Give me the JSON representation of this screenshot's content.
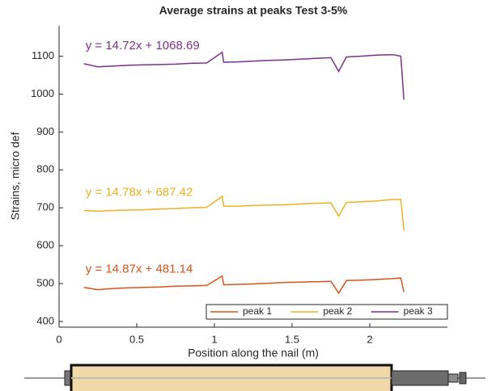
{
  "chart_data": {
    "type": "line",
    "title": "Average strains at peaks Test 3-5%",
    "xlabel": "Position along the nail (m)",
    "ylabel": "Strains, micro def",
    "x": [
      0.16,
      0.25,
      0.35,
      0.45,
      0.55,
      0.65,
      0.75,
      0.85,
      0.95,
      1.05,
      1.06,
      1.15,
      1.25,
      1.35,
      1.45,
      1.55,
      1.65,
      1.75,
      1.8,
      1.85,
      1.95,
      2.05,
      2.15,
      2.2,
      2.22
    ],
    "series": [
      {
        "name": "peak 1",
        "color": "#d95319",
        "annotation": "y = 14.87x + 481.14",
        "values": [
          490,
          484,
          487,
          489,
          490,
          491,
          493,
          494,
          495,
          520,
          497,
          498,
          499,
          501,
          503,
          504,
          505,
          506,
          475,
          508,
          509,
          511,
          513,
          515,
          478
        ]
      },
      {
        "name": "peak 2",
        "color": "#edb120",
        "annotation": "y = 14.78x + 687.42",
        "values": [
          693,
          691,
          693,
          694,
          695,
          697,
          698,
          700,
          701,
          730,
          704,
          704,
          706,
          707,
          708,
          710,
          712,
          713,
          678,
          714,
          716,
          718,
          722,
          722,
          640
        ]
      },
      {
        "name": "peak 3",
        "color": "#7e2f8e",
        "annotation": "y = 14.72x + 1068.69",
        "values": [
          1080,
          1072,
          1074,
          1076,
          1077,
          1078,
          1079,
          1081,
          1082,
          1110,
          1084,
          1085,
          1087,
          1089,
          1090,
          1092,
          1094,
          1096,
          1060,
          1098,
          1100,
          1103,
          1104,
          1100,
          985
        ]
      }
    ],
    "xlim": [
      0,
      2.5
    ],
    "xticks": [
      0,
      0.5,
      1,
      1.5,
      2
    ],
    "ylim": [
      385,
      1180
    ],
    "yticks": [
      400,
      500,
      600,
      700,
      800,
      900,
      1000,
      1100
    ],
    "grid": false,
    "legend": "lower right"
  }
}
